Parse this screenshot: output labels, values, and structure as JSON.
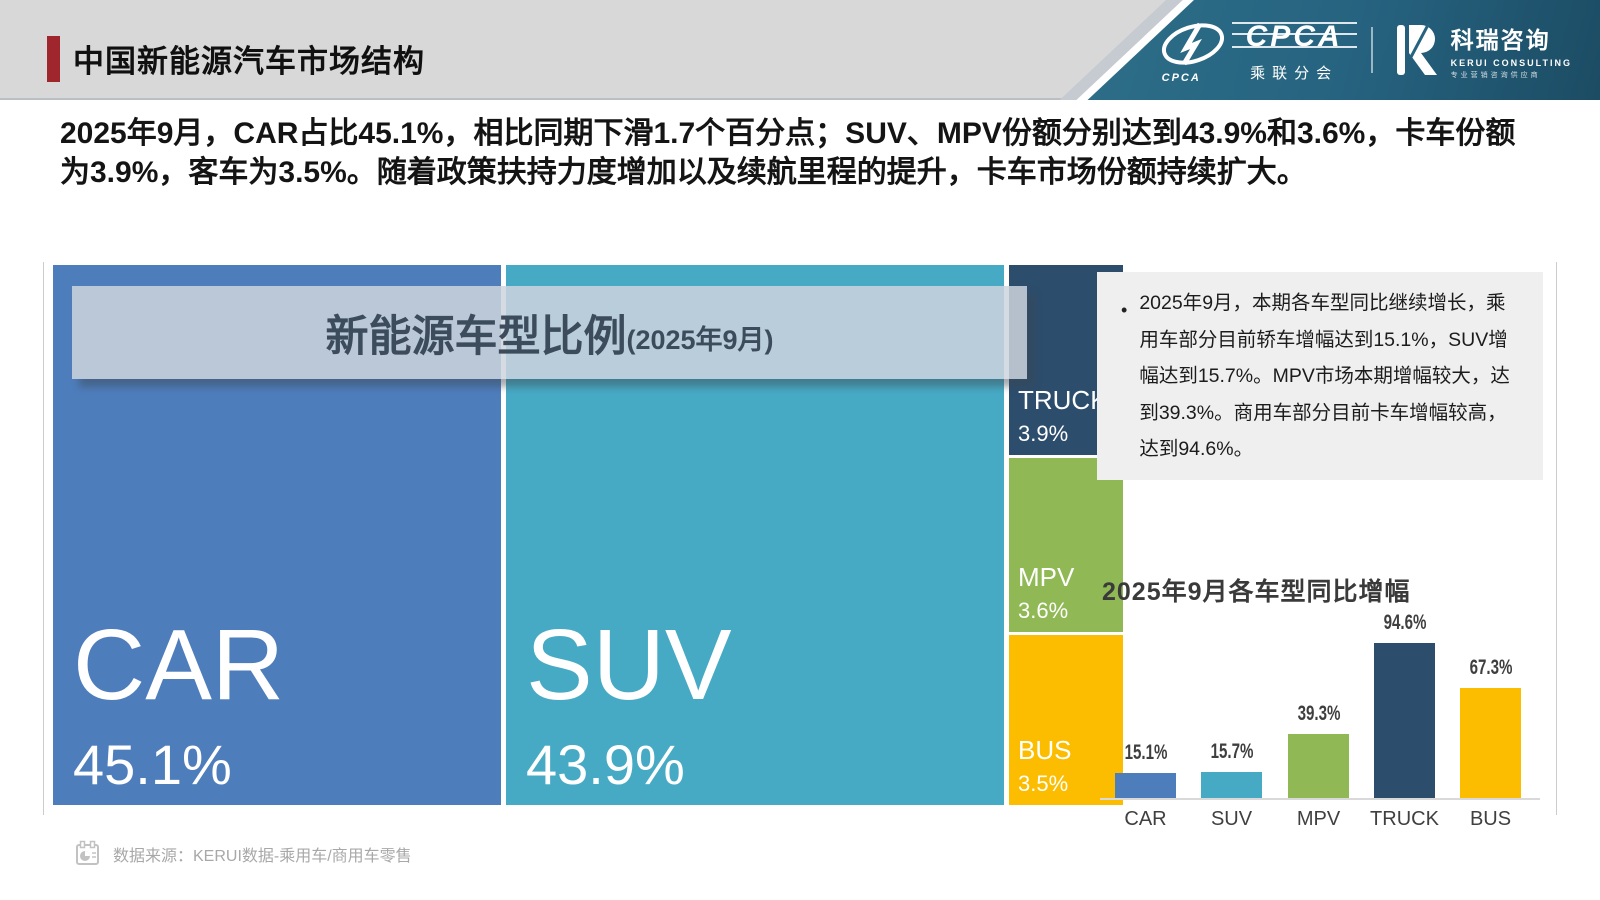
{
  "header": {
    "title": "中国新能源汽车市场结构",
    "cpca": {
      "wordmark": "CPCA",
      "mark_text": "CPCA",
      "sub": "乘联分会"
    },
    "kerui": {
      "name": "科瑞咨询",
      "en": "KERUI CONSULTING",
      "tagline": "专业营销咨询供应商"
    }
  },
  "summary": {
    "text": "2025年9月，CAR占比45.1%，相比同期下滑1.7个百分点；SUV、MPV份额分别达到43.9%和3.6%，卡车份额为3.9%，客车为3.5%。随着政策扶持力度增加以及续航里程的提升，卡车市场份额持续扩大。"
  },
  "treemap": {
    "overlay_title": "新能源车型比例",
    "overlay_suffix": "(2025年9月)",
    "blocks": [
      {
        "label": "CAR",
        "share": "45.1%"
      },
      {
        "label": "SUV",
        "share": "43.9%"
      },
      {
        "label": "TRUCK",
        "share": "3.9%"
      },
      {
        "label": "MPV",
        "share": "3.6%"
      },
      {
        "label": "BUS",
        "share": "3.5%"
      }
    ]
  },
  "insight": {
    "bullet": "•",
    "text": "2025年9月，本期各车型同比继续增长，乘用车部分目前轿车增幅达到15.1%，SUV增幅达到15.7%。MPV市场本期增幅较大，达到39.3%。商用车部分目前卡车增幅较高，达到94.6%。"
  },
  "growth": {
    "title": "2025年9月各车型同比增幅"
  },
  "footer": {
    "source": "数据来源：KERUI数据-乘用车/商用车零售"
  },
  "colors": {
    "car": "#4e7dbc",
    "suv": "#47aac5",
    "mpv": "#90b854",
    "truck": "#2d4d6d",
    "bus": "#fcbd00",
    "accent_red": "#9e262c",
    "banner_teal": "#266380",
    "header_gray": "#d8d8d8",
    "overlay_gray": "#ced5dd"
  },
  "chart_data": [
    {
      "type": "treemap",
      "title": "新能源车型比例(2025年9月)",
      "categories": [
        "CAR",
        "SUV",
        "TRUCK",
        "MPV",
        "BUS"
      ],
      "values": [
        45.1,
        43.9,
        3.9,
        3.6,
        3.5
      ],
      "unit": "%",
      "colors": [
        "#4e7dbc",
        "#47aac5",
        "#2d4d6d",
        "#90b854",
        "#fcbd00"
      ]
    },
    {
      "type": "bar",
      "title": "2025年9月各车型同比增幅",
      "categories": [
        "CAR",
        "SUV",
        "MPV",
        "TRUCK",
        "BUS"
      ],
      "values": [
        15.1,
        15.7,
        39.3,
        94.6,
        67.3
      ],
      "labels": [
        "15.1%",
        "15.7%",
        "39.3%",
        "94.6%",
        "67.3%"
      ],
      "unit": "%",
      "ylim": [
        0,
        100
      ],
      "grid": false,
      "legend": "none",
      "colors": [
        "#4e7dbc",
        "#47aac5",
        "#90b854",
        "#2d4d6d",
        "#fcbd00"
      ]
    }
  ]
}
